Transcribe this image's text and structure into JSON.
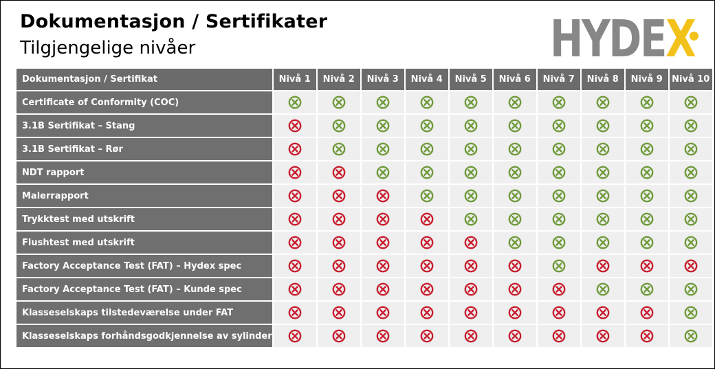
{
  "header": {
    "title": "Dokumentasjon / Sertifikater",
    "subtitle": "Tilgjengelige nivåer"
  },
  "logo": {
    "text_main": "HYDE",
    "text_accent": "X",
    "colors": {
      "grey": "#878787",
      "yellow": "#f2c21b"
    }
  },
  "colors": {
    "available": "#6f9a3a",
    "unavailable": "#c81e2e",
    "header_bg": "#6b6b6b",
    "cell_bg": "#efefef"
  },
  "table": {
    "corner_label": "Dokumentasjon / Sertifikat",
    "columns": [
      "Nivå 1",
      "Nivå 2",
      "Nivå 3",
      "Nivå 4",
      "Nivå 5",
      "Nivå 6",
      "Nivå 7",
      "Nivå 8",
      "Nivå 9",
      "Nivå 10"
    ],
    "rows": [
      {
        "label": "Certificate of Conformity (COC)",
        "values": [
          "green",
          "green",
          "green",
          "green",
          "green",
          "green",
          "green",
          "green",
          "green",
          "green"
        ]
      },
      {
        "label": "3.1B Sertifikat – Stang",
        "values": [
          "red",
          "green",
          "green",
          "green",
          "green",
          "green",
          "green",
          "green",
          "green",
          "green"
        ]
      },
      {
        "label": "3.1B Sertifikat – Rør",
        "values": [
          "red",
          "green",
          "green",
          "green",
          "green",
          "green",
          "green",
          "green",
          "green",
          "green"
        ]
      },
      {
        "label": "NDT rapport",
        "values": [
          "red",
          "red",
          "green",
          "green",
          "green",
          "green",
          "green",
          "green",
          "green",
          "green"
        ]
      },
      {
        "label": "Malerrapport",
        "values": [
          "red",
          "red",
          "red",
          "green",
          "green",
          "green",
          "green",
          "green",
          "green",
          "green"
        ]
      },
      {
        "label": "Trykktest med utskrift",
        "values": [
          "red",
          "red",
          "red",
          "red",
          "green",
          "green",
          "green",
          "green",
          "green",
          "green"
        ]
      },
      {
        "label": "Flushtest med utskrift",
        "values": [
          "red",
          "red",
          "red",
          "red",
          "red",
          "green",
          "green",
          "green",
          "green",
          "green"
        ]
      },
      {
        "label": "Factory Acceptance Test (FAT) – Hydex spec",
        "values": [
          "red",
          "red",
          "red",
          "red",
          "red",
          "red",
          "green",
          "red",
          "red",
          "red"
        ]
      },
      {
        "label": "Factory Acceptance Test (FAT) – Kunde  spec",
        "values": [
          "red",
          "red",
          "red",
          "red",
          "red",
          "red",
          "red",
          "green",
          "green",
          "green"
        ]
      },
      {
        "label": "Klasseselskaps tilstedeværelse under FAT",
        "values": [
          "red",
          "red",
          "red",
          "red",
          "red",
          "red",
          "red",
          "red",
          "red",
          "green"
        ]
      },
      {
        "label": "Klasseselskaps forhåndsgodkjennelse  av sylinder",
        "values": [
          "red",
          "red",
          "red",
          "red",
          "red",
          "red",
          "red",
          "red",
          "red",
          "green"
        ]
      }
    ]
  }
}
